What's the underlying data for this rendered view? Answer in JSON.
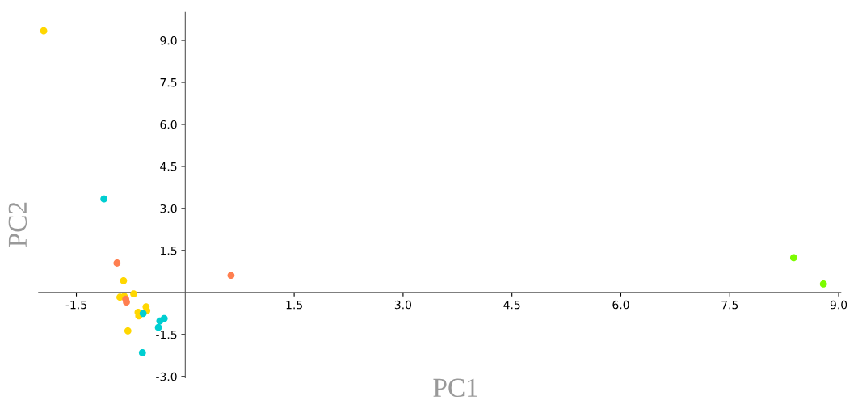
{
  "chart_data": {
    "type": "scatter",
    "xlabel": "PC1",
    "ylabel": "PC2",
    "xlim": [
      -2.02,
      9.03
    ],
    "ylim": [
      -3.05,
      10.0
    ],
    "xticks": [
      {
        "value": -1.5,
        "label": "-1.5"
      },
      {
        "value": 1.5,
        "label": "1.5"
      },
      {
        "value": 3,
        "label": "3.0"
      },
      {
        "value": 4.5,
        "label": "4.5"
      },
      {
        "value": 6,
        "label": "6.0"
      },
      {
        "value": 7.5,
        "label": "7.5"
      },
      {
        "value": 9,
        "label": "9.0"
      }
    ],
    "yticks": [
      {
        "value": -3,
        "label": "-3.0"
      },
      {
        "value": -1.5,
        "label": "-1.5"
      },
      {
        "value": 1.5,
        "label": "1.5"
      },
      {
        "value": 3,
        "label": "3.0"
      },
      {
        "value": 4.5,
        "label": "4.5"
      },
      {
        "value": 6,
        "label": "6.0"
      },
      {
        "value": 7.5,
        "label": "7.5"
      },
      {
        "value": 9,
        "label": "9.0"
      }
    ],
    "grid": false,
    "legend": false,
    "marker": "circle",
    "series": [
      {
        "color": "#ffd700",
        "x": [
          -1.95,
          -0.85,
          -0.71,
          -0.9,
          -0.84,
          -0.54,
          -0.53,
          -0.65,
          -0.64,
          -0.79
        ],
        "values": [
          9.34,
          0.42,
          -0.05,
          -0.17,
          -0.14,
          -0.51,
          -0.65,
          -0.71,
          -0.84,
          -1.37
        ]
      },
      {
        "color": "#ff7f50",
        "x": [
          -0.94,
          -0.81,
          -0.82,
          0.63
        ],
        "values": [
          1.05,
          -0.34,
          -0.24,
          0.61
        ]
      },
      {
        "color": "#00ced1",
        "x": [
          -1.12,
          -0.58,
          -0.29,
          -0.35,
          -0.37,
          -0.59
        ],
        "values": [
          3.34,
          -0.75,
          -0.93,
          -1.02,
          -1.25,
          -2.15
        ]
      },
      {
        "color": "#7cfc00",
        "x": [
          8.38,
          8.79
        ],
        "values": [
          1.24,
          0.3
        ]
      }
    ]
  }
}
